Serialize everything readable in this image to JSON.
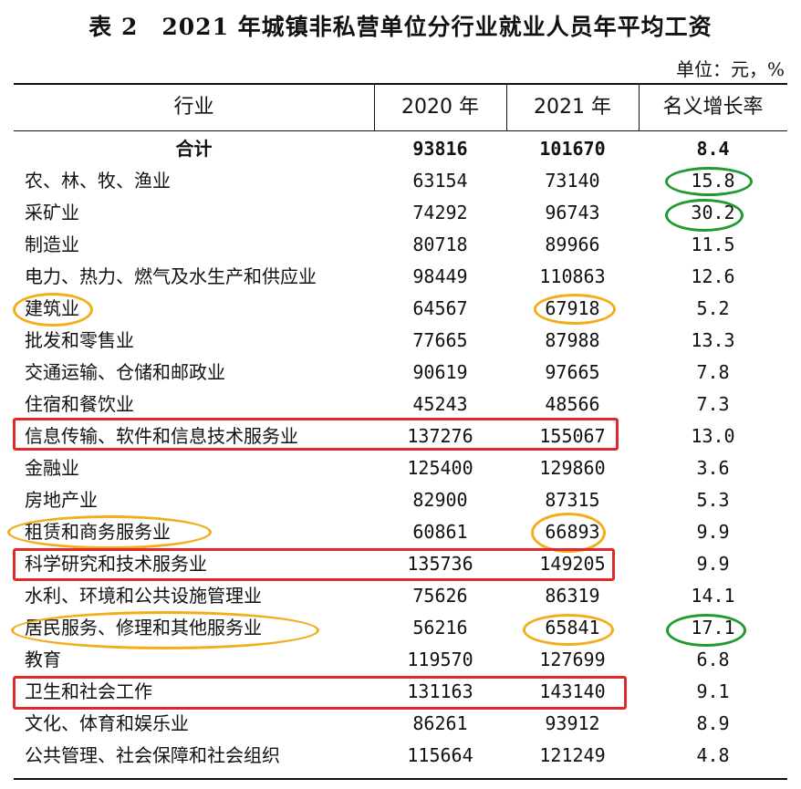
{
  "title": "表 2　2021 年城镇非私营单位分行业就业人员年平均工资",
  "unit": "单位：元，%",
  "columns": [
    "行业",
    "2020 年",
    "2021 年",
    "名义增长率"
  ],
  "total": {
    "industry": "合计",
    "y2020": "93816",
    "y2021": "101670",
    "rate": "8.4"
  },
  "rows": [
    {
      "industry": "农、林、牧、渔业",
      "y2020": "63154",
      "y2021": "73140",
      "rate": "15.8"
    },
    {
      "industry": "采矿业",
      "y2020": "74292",
      "y2021": "96743",
      "rate": "30.2"
    },
    {
      "industry": "制造业",
      "y2020": "80718",
      "y2021": "89966",
      "rate": "11.5"
    },
    {
      "industry": "电力、热力、燃气及水生产和供应业",
      "y2020": "98449",
      "y2021": "110863",
      "rate": "12.6"
    },
    {
      "industry": "建筑业",
      "y2020": "64567",
      "y2021": "67918",
      "rate": "5.2"
    },
    {
      "industry": "批发和零售业",
      "y2020": "77665",
      "y2021": "87988",
      "rate": "13.3"
    },
    {
      "industry": "交通运输、仓储和邮政业",
      "y2020": "90619",
      "y2021": "97665",
      "rate": "7.8"
    },
    {
      "industry": "住宿和餐饮业",
      "y2020": "45243",
      "y2021": "48566",
      "rate": "7.3"
    },
    {
      "industry": "信息传输、软件和信息技术服务业",
      "y2020": "137276",
      "y2021": "155067",
      "rate": "13.0"
    },
    {
      "industry": "金融业",
      "y2020": "125400",
      "y2021": "129860",
      "rate": "3.6"
    },
    {
      "industry": "房地产业",
      "y2020": "82900",
      "y2021": "87315",
      "rate": "5.3"
    },
    {
      "industry": "租赁和商务服务业",
      "y2020": "60861",
      "y2021": "66893",
      "rate": "9.9"
    },
    {
      "industry": "科学研究和技术服务业",
      "y2020": "135736",
      "y2021": "149205",
      "rate": "9.9"
    },
    {
      "industry": "水利、环境和公共设施管理业",
      "y2020": "75626",
      "y2021": "86319",
      "rate": "14.1"
    },
    {
      "industry": "居民服务、修理和其他服务业",
      "y2020": "56216",
      "y2021": "65841",
      "rate": "17.1"
    },
    {
      "industry": "教育",
      "y2020": "119570",
      "y2021": "127699",
      "rate": "6.8"
    },
    {
      "industry": "卫生和社会工作",
      "y2020": "131163",
      "y2021": "143140",
      "rate": "9.1"
    },
    {
      "industry": "文化、体育和娱乐业",
      "y2020": "86261",
      "y2021": "93912",
      "rate": "8.9"
    },
    {
      "industry": "公共管理、社会保障和社会组织",
      "y2020": "115664",
      "y2021": "121249",
      "rate": "4.8"
    }
  ],
  "annotation_colors": {
    "red": "#e02a2a",
    "orange": "#f3ad1a",
    "green": "#1e9a2e"
  }
}
